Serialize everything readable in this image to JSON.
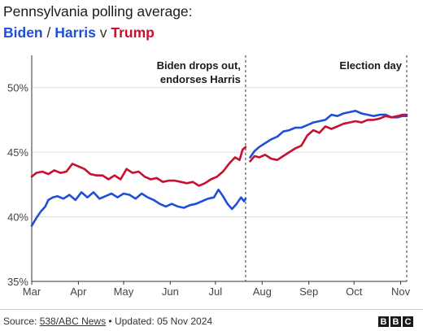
{
  "header": {
    "title": "Pennsylvania polling average:",
    "subtitle": {
      "biden": "Biden",
      "slash": "/",
      "harris": "Harris",
      "v": "v",
      "trump": "Trump"
    }
  },
  "footer": {
    "source_prefix": "Source: ",
    "source_link": "538/ABC News",
    "updated": " • Updated: 05 Nov 2024",
    "logo_letters": [
      "B",
      "B",
      "C"
    ]
  },
  "colors": {
    "dem": "#1f4ed8",
    "rep": "#c8102e",
    "grid": "#dddddd",
    "axis": "#333333"
  },
  "chart_data": {
    "type": "line",
    "title": "Pennsylvania polling average:",
    "ylim": [
      35,
      52.5
    ],
    "yticks": [
      {
        "value": 50,
        "label": "50%"
      },
      {
        "value": 45,
        "label": "45%"
      },
      {
        "value": 40,
        "label": "40%"
      },
      {
        "value": 35,
        "label": "35%"
      }
    ],
    "xlim": [
      "2024-03-01",
      "2024-11-05"
    ],
    "xticks": [
      {
        "date": "2024-03-01",
        "label": "Mar"
      },
      {
        "date": "2024-04-01",
        "label": "Apr"
      },
      {
        "date": "2024-05-01",
        "label": "May"
      },
      {
        "date": "2024-06-01",
        "label": "Jun"
      },
      {
        "date": "2024-07-01",
        "label": "Jul"
      },
      {
        "date": "2024-08-01",
        "label": "Aug"
      },
      {
        "date": "2024-09-01",
        "label": "Sep"
      },
      {
        "date": "2024-10-01",
        "label": "Oct"
      },
      {
        "date": "2024-11-01",
        "label": "Nov"
      }
    ],
    "grid": true,
    "annotations": [
      {
        "date": "2024-07-21",
        "lines": [
          "Biden drops out,",
          "endorses Harris"
        ]
      },
      {
        "date": "2024-11-05",
        "lines": [
          "Election day"
        ]
      }
    ],
    "series": [
      {
        "name": "Biden",
        "color": "dem",
        "points": [
          [
            "2024-03-01",
            39.3
          ],
          [
            "2024-03-04",
            39.9
          ],
          [
            "2024-03-07",
            40.4
          ],
          [
            "2024-03-10",
            40.8
          ],
          [
            "2024-03-12",
            41.3
          ],
          [
            "2024-03-15",
            41.5
          ],
          [
            "2024-03-18",
            41.6
          ],
          [
            "2024-03-22",
            41.4
          ],
          [
            "2024-03-26",
            41.7
          ],
          [
            "2024-03-30",
            41.3
          ],
          [
            "2024-04-03",
            41.9
          ],
          [
            "2024-04-07",
            41.5
          ],
          [
            "2024-04-11",
            41.9
          ],
          [
            "2024-04-15",
            41.4
          ],
          [
            "2024-04-19",
            41.6
          ],
          [
            "2024-04-23",
            41.8
          ],
          [
            "2024-04-27",
            41.5
          ],
          [
            "2024-05-01",
            41.8
          ],
          [
            "2024-05-05",
            41.7
          ],
          [
            "2024-05-09",
            41.4
          ],
          [
            "2024-05-13",
            41.8
          ],
          [
            "2024-05-17",
            41.5
          ],
          [
            "2024-05-21",
            41.3
          ],
          [
            "2024-05-25",
            41.0
          ],
          [
            "2024-05-29",
            40.8
          ],
          [
            "2024-06-02",
            41.0
          ],
          [
            "2024-06-06",
            40.8
          ],
          [
            "2024-06-10",
            40.7
          ],
          [
            "2024-06-14",
            40.9
          ],
          [
            "2024-06-18",
            41.0
          ],
          [
            "2024-06-22",
            41.2
          ],
          [
            "2024-06-26",
            41.4
          ],
          [
            "2024-06-30",
            41.5
          ],
          [
            "2024-07-03",
            42.1
          ],
          [
            "2024-07-06",
            41.6
          ],
          [
            "2024-07-09",
            41.0
          ],
          [
            "2024-07-12",
            40.6
          ],
          [
            "2024-07-15",
            41.0
          ],
          [
            "2024-07-18",
            41.5
          ],
          [
            "2024-07-20",
            41.2
          ],
          [
            "2024-07-21",
            41.4
          ]
        ]
      },
      {
        "name": "Harris",
        "color": "dem",
        "points": [
          [
            "2024-07-24",
            44.6
          ],
          [
            "2024-07-27",
            45.1
          ],
          [
            "2024-07-30",
            45.4
          ],
          [
            "2024-08-03",
            45.7
          ],
          [
            "2024-08-07",
            46.0
          ],
          [
            "2024-08-11",
            46.2
          ],
          [
            "2024-08-15",
            46.6
          ],
          [
            "2024-08-19",
            46.7
          ],
          [
            "2024-08-23",
            46.9
          ],
          [
            "2024-08-27",
            46.9
          ],
          [
            "2024-08-31",
            47.1
          ],
          [
            "2024-09-04",
            47.3
          ],
          [
            "2024-09-08",
            47.4
          ],
          [
            "2024-09-12",
            47.5
          ],
          [
            "2024-09-16",
            47.9
          ],
          [
            "2024-09-20",
            47.8
          ],
          [
            "2024-09-24",
            48.0
          ],
          [
            "2024-09-28",
            48.1
          ],
          [
            "2024-10-02",
            48.2
          ],
          [
            "2024-10-06",
            48.0
          ],
          [
            "2024-10-10",
            47.9
          ],
          [
            "2024-10-14",
            47.8
          ],
          [
            "2024-10-18",
            47.9
          ],
          [
            "2024-10-22",
            47.9
          ],
          [
            "2024-10-26",
            47.7
          ],
          [
            "2024-10-30",
            47.7
          ],
          [
            "2024-11-02",
            47.8
          ],
          [
            "2024-11-05",
            47.8
          ]
        ]
      },
      {
        "name": "Trump",
        "color": "rep",
        "points": [
          [
            "2024-03-01",
            43.1
          ],
          [
            "2024-03-04",
            43.4
          ],
          [
            "2024-03-08",
            43.5
          ],
          [
            "2024-03-12",
            43.3
          ],
          [
            "2024-03-16",
            43.6
          ],
          [
            "2024-03-20",
            43.4
          ],
          [
            "2024-03-24",
            43.5
          ],
          [
            "2024-03-28",
            44.1
          ],
          [
            "2024-04-01",
            43.9
          ],
          [
            "2024-04-05",
            43.7
          ],
          [
            "2024-04-09",
            43.3
          ],
          [
            "2024-04-13",
            43.2
          ],
          [
            "2024-04-17",
            43.2
          ],
          [
            "2024-04-21",
            42.9
          ],
          [
            "2024-04-25",
            43.2
          ],
          [
            "2024-04-29",
            42.9
          ],
          [
            "2024-05-03",
            43.7
          ],
          [
            "2024-05-07",
            43.4
          ],
          [
            "2024-05-11",
            43.5
          ],
          [
            "2024-05-15",
            43.1
          ],
          [
            "2024-05-19",
            42.9
          ],
          [
            "2024-05-23",
            43.0
          ],
          [
            "2024-05-27",
            42.7
          ],
          [
            "2024-05-31",
            42.8
          ],
          [
            "2024-06-04",
            42.8
          ],
          [
            "2024-06-08",
            42.7
          ],
          [
            "2024-06-12",
            42.6
          ],
          [
            "2024-06-16",
            42.7
          ],
          [
            "2024-06-20",
            42.4
          ],
          [
            "2024-06-24",
            42.6
          ],
          [
            "2024-06-28",
            42.9
          ],
          [
            "2024-07-02",
            43.1
          ],
          [
            "2024-07-06",
            43.5
          ],
          [
            "2024-07-10",
            44.1
          ],
          [
            "2024-07-14",
            44.6
          ],
          [
            "2024-07-17",
            44.4
          ],
          [
            "2024-07-19",
            45.2
          ],
          [
            "2024-07-21",
            45.4
          ]
        ]
      },
      {
        "name": "Trump",
        "color": "rep",
        "points": [
          [
            "2024-07-24",
            44.3
          ],
          [
            "2024-07-27",
            44.7
          ],
          [
            "2024-07-30",
            44.6
          ],
          [
            "2024-08-03",
            44.8
          ],
          [
            "2024-08-07",
            44.5
          ],
          [
            "2024-08-11",
            44.4
          ],
          [
            "2024-08-15",
            44.7
          ],
          [
            "2024-08-19",
            45.0
          ],
          [
            "2024-08-23",
            45.3
          ],
          [
            "2024-08-27",
            45.5
          ],
          [
            "2024-08-31",
            46.3
          ],
          [
            "2024-09-04",
            46.7
          ],
          [
            "2024-09-08",
            46.5
          ],
          [
            "2024-09-12",
            47.0
          ],
          [
            "2024-09-16",
            46.8
          ],
          [
            "2024-09-20",
            47.0
          ],
          [
            "2024-09-24",
            47.2
          ],
          [
            "2024-09-28",
            47.3
          ],
          [
            "2024-10-02",
            47.4
          ],
          [
            "2024-10-06",
            47.3
          ],
          [
            "2024-10-10",
            47.5
          ],
          [
            "2024-10-14",
            47.5
          ],
          [
            "2024-10-18",
            47.6
          ],
          [
            "2024-10-22",
            47.8
          ],
          [
            "2024-10-26",
            47.7
          ],
          [
            "2024-10-30",
            47.8
          ],
          [
            "2024-11-02",
            47.9
          ],
          [
            "2024-11-05",
            47.9
          ]
        ]
      }
    ]
  }
}
